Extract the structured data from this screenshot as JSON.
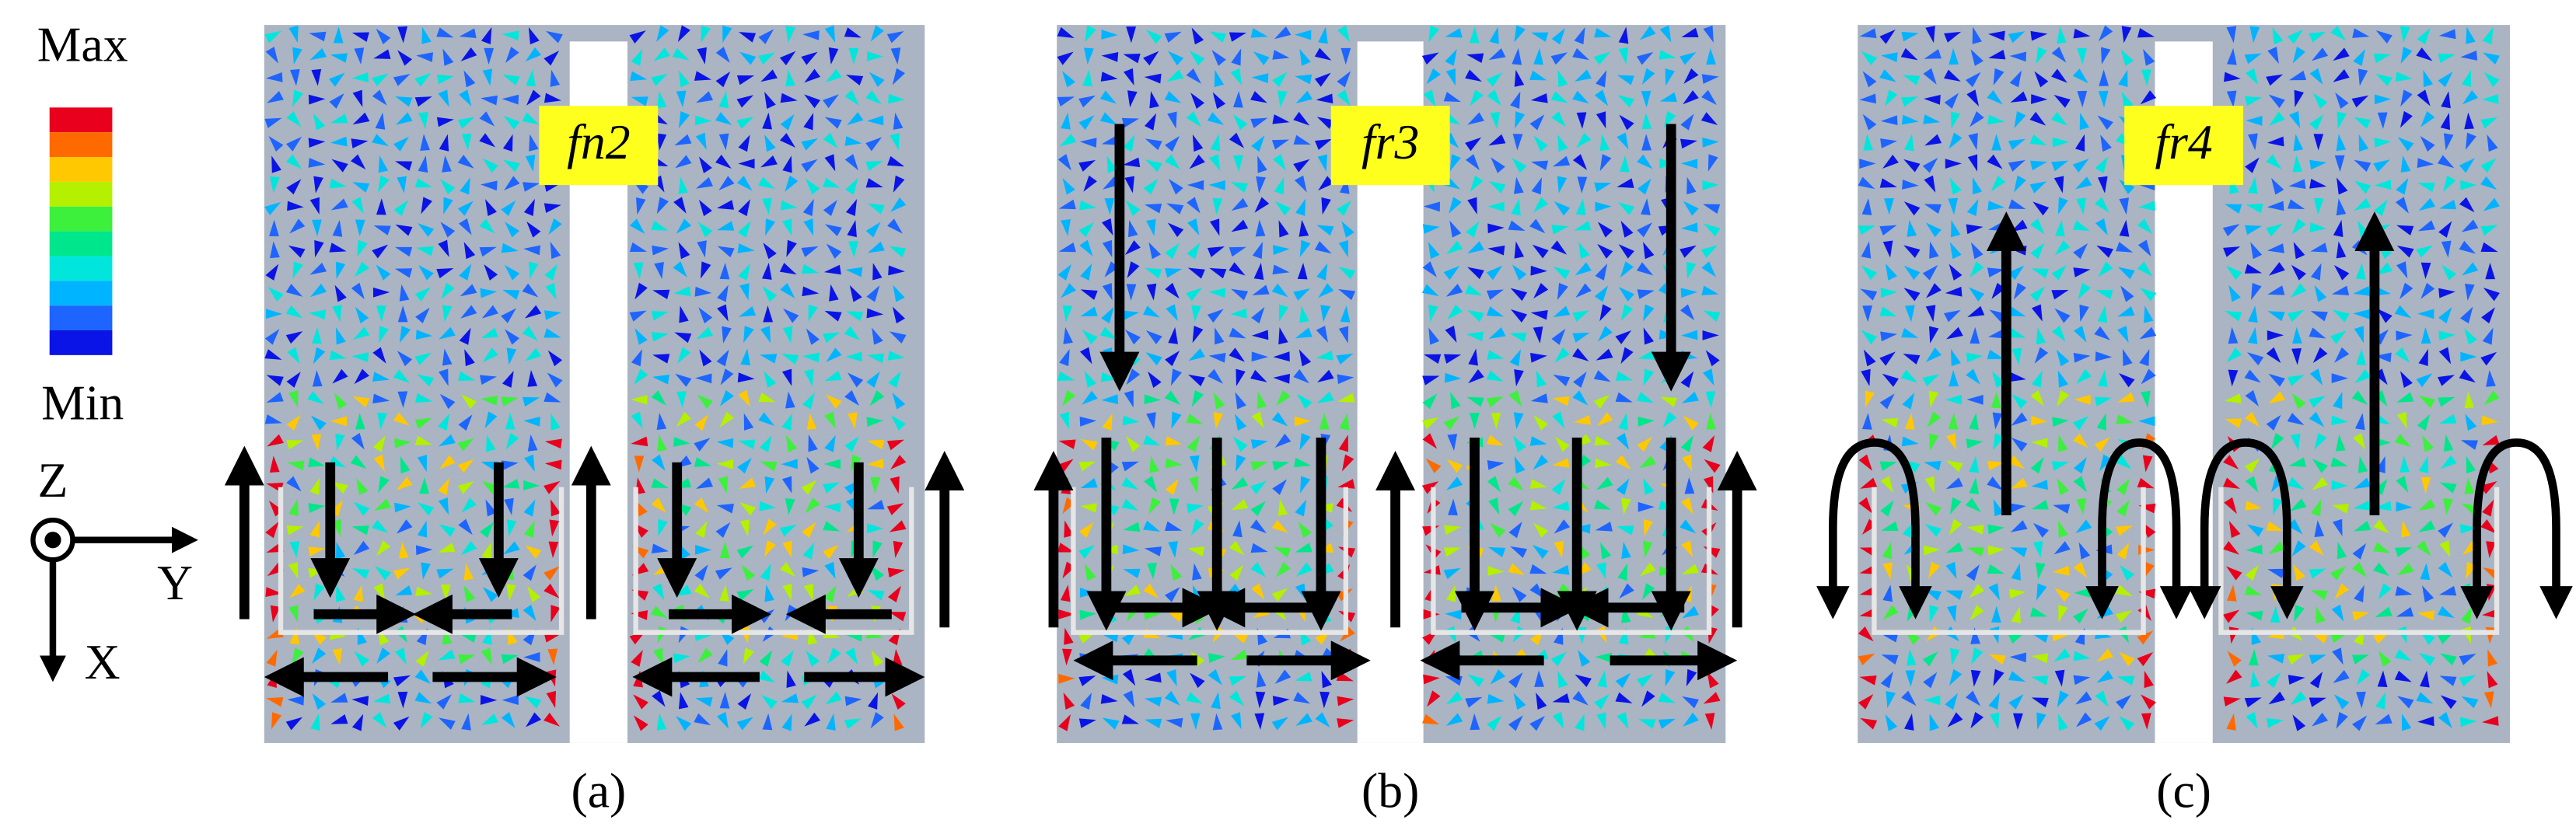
{
  "legend": {
    "max": "Max",
    "min": "Min"
  },
  "axes": {
    "z": "Z",
    "y": "Y",
    "x": "X"
  },
  "panels": [
    {
      "mode": "fn2",
      "caption": "(a)"
    },
    {
      "mode": "fr3",
      "caption": "(b)"
    },
    {
      "mode": "fr4",
      "caption": "(c)"
    }
  ]
}
